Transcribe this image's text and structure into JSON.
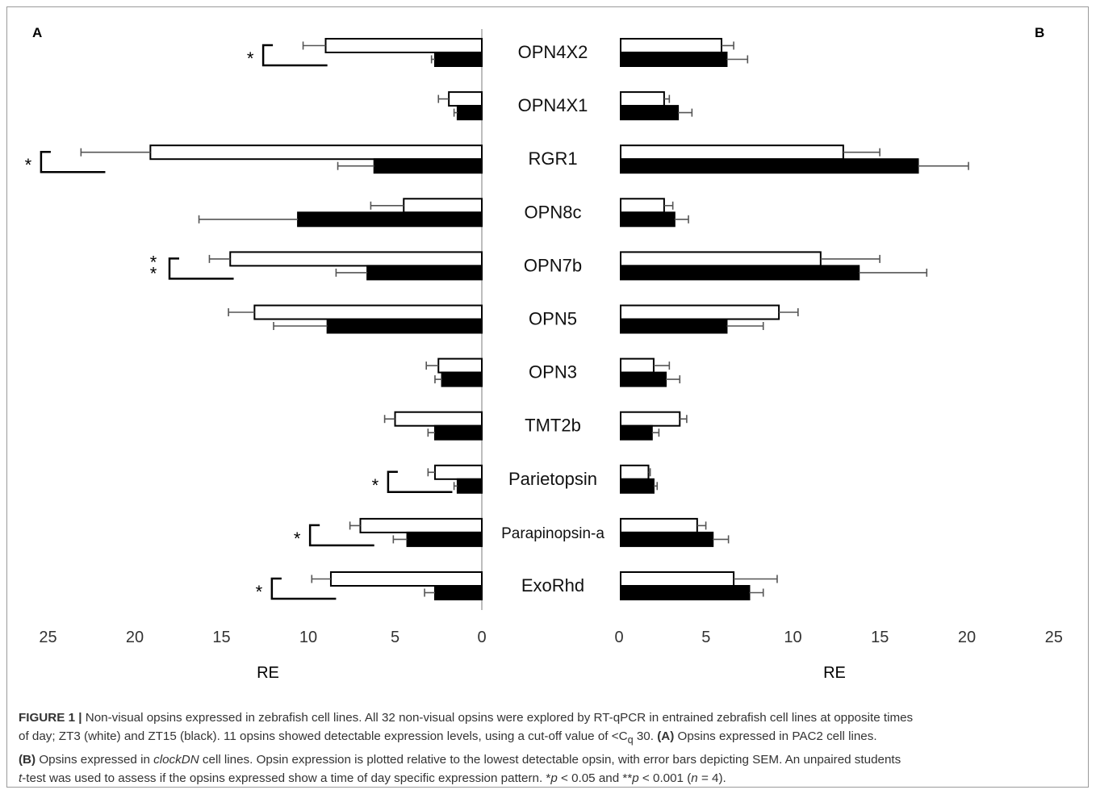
{
  "chart_data": [
    {
      "panel": "A",
      "type": "bar",
      "orientation": "horizontal",
      "direction": "leftward",
      "categories": [
        "OPN4X2",
        "OPN4X1",
        "RGR1",
        "OPN8c",
        "OPN7b",
        "OPN5",
        "OPN3",
        "TMT2b",
        "Parietopsin",
        "Parapinopsin-a",
        "ExoRhd"
      ],
      "series": [
        {
          "fill": "#ffffff",
          "values": [
            9.0,
            1.9,
            19.1,
            4.5,
            14.5,
            13.1,
            2.5,
            5.0,
            2.7,
            7.0,
            8.7
          ],
          "errors": [
            1.3,
            0.6,
            4.0,
            1.9,
            1.2,
            1.5,
            0.7,
            0.6,
            0.4,
            0.6,
            1.1
          ]
        },
        {
          "fill": "#000000",
          "values": [
            2.7,
            1.4,
            6.2,
            10.6,
            6.6,
            8.9,
            2.3,
            2.7,
            1.4,
            4.3,
            2.7
          ],
          "errors": [
            0.2,
            0.2,
            2.1,
            5.7,
            1.8,
            3.1,
            0.4,
            0.4,
            0.2,
            0.8,
            0.6
          ]
        }
      ],
      "significance": [
        "*",
        "",
        "*",
        "",
        "**",
        "",
        "",
        "",
        "*",
        "*",
        "*"
      ],
      "xlim": [
        0,
        25
      ],
      "xticks": [
        "25",
        "20",
        "15",
        "10",
        "5",
        "0"
      ],
      "xlabel": "RE"
    },
    {
      "panel": "B",
      "type": "bar",
      "orientation": "horizontal",
      "direction": "rightward",
      "categories": [
        "OPN4X2",
        "OPN4X1",
        "RGR1",
        "OPN8c",
        "OPN7b",
        "OPN5",
        "OPN3",
        "TMT2b",
        "Parietopsin",
        "Parapinopsin-a",
        "ExoRhd"
      ],
      "series": [
        {
          "fill": "#ffffff",
          "values": [
            5.8,
            2.5,
            12.8,
            2.5,
            11.5,
            9.1,
            1.9,
            3.4,
            1.6,
            4.4,
            6.5
          ],
          "errors": [
            0.7,
            0.3,
            2.1,
            0.5,
            3.4,
            1.1,
            0.9,
            0.4,
            0.1,
            0.5,
            2.5
          ]
        },
        {
          "fill": "#000000",
          "values": [
            6.1,
            3.3,
            17.1,
            3.1,
            13.7,
            6.1,
            2.6,
            1.8,
            1.9,
            5.3,
            7.4
          ],
          "errors": [
            1.2,
            0.8,
            2.9,
            0.8,
            3.9,
            2.1,
            0.8,
            0.4,
            0.2,
            0.9,
            0.8
          ]
        }
      ],
      "xlim": [
        0,
        25
      ],
      "xticks": [
        "0",
        "5",
        "10",
        "15",
        "20",
        "25"
      ],
      "xlabel": "RE"
    }
  ],
  "caption": {
    "label": "FIGURE 1 |",
    "line1": "Non-visual opsins expressed in zebrafish cell lines. All 32 non-visual opsins were explored by RT-qPCR in entrained zebrafish cell lines at opposite times",
    "line2a": "of day; ZT3 (white) and ZT15 (black). 11 opsins showed detectable expression levels, using a cut-off value of <C",
    "line2sub": "q",
    "line2b": " 30.",
    "refA": "(A)",
    "line2c": " Opsins expressed in PAC2 cell lines.",
    "refB": "(B)",
    "line3a": " Opsins expressed in ",
    "line3italic": "clockDN",
    "line3b": " cell lines. Opsin expression is plotted relative to the lowest detectable opsin, with error bars depicting SEM. An unpaired students",
    "line4italic1": "t",
    "line4a": "-test was used to assess if the opsins expressed show a time of day specific expression pattern. *",
    "line4p1": "p",
    "line4b": " < 0.05 and **",
    "line4p2": "p",
    "line4c": " < 0.001 (",
    "line4n": "n",
    "line4d": " = 4)."
  }
}
